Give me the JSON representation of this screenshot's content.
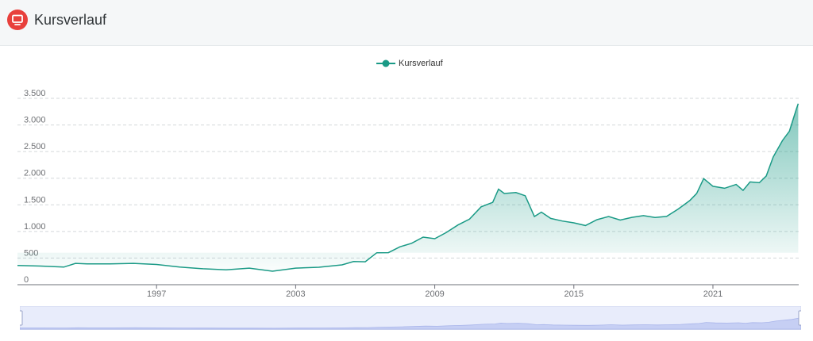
{
  "header": {
    "title": "Kursverlauf",
    "icon": "monitor-icon",
    "icon_color": "#e8403c"
  },
  "chart_data": {
    "type": "area",
    "title": "",
    "xlabel": "",
    "ylabel": "",
    "legend": {
      "entries": [
        "Kursverlauf"
      ],
      "placement": "top-center"
    },
    "grid": true,
    "xlim": [
      1991,
      2024.7
    ],
    "ylim": [
      0,
      3500
    ],
    "yticks": [
      0,
      500,
      1000,
      1500,
      2000,
      2500,
      3000,
      3500
    ],
    "ytick_labels": [
      "0",
      "500",
      "1.000",
      "1.500",
      "2.000",
      "2.500",
      "3.000",
      "3.500"
    ],
    "xticks": [
      1997,
      2003,
      2009,
      2015,
      2021
    ],
    "xtick_labels": [
      "1997",
      "2003",
      "2009",
      "2015",
      "2021"
    ],
    "series": [
      {
        "name": "Kursverlauf",
        "color": "#1a9a86",
        "x": [
          1991.0,
          1992.0,
          1993.0,
          1993.5,
          1994.0,
          1995.0,
          1996.0,
          1997.0,
          1998.0,
          1999.0,
          2000.0,
          2001.0,
          2002.0,
          2003.0,
          2004.0,
          2005.0,
          2005.5,
          2006.0,
          2006.5,
          2007.0,
          2007.5,
          2008.0,
          2008.5,
          2009.0,
          2009.5,
          2010.0,
          2010.5,
          2011.0,
          2011.5,
          2011.75,
          2012.0,
          2012.5,
          2012.9,
          2013.3,
          2013.6,
          2014.0,
          2014.5,
          2015.0,
          2015.5,
          2016.0,
          2016.5,
          2017.0,
          2017.5,
          2018.0,
          2018.5,
          2019.0,
          2019.5,
          2020.0,
          2020.3,
          2020.6,
          2021.0,
          2021.5,
          2022.0,
          2022.3,
          2022.6,
          2023.0,
          2023.3,
          2023.6,
          2024.0,
          2024.3,
          2024.6,
          2024.68
        ],
        "y": [
          360,
          350,
          330,
          400,
          390,
          390,
          400,
          380,
          330,
          300,
          280,
          290,
          270,
          300,
          330,
          380,
          420,
          450,
          580,
          620,
          700,
          780,
          900,
          850,
          1000,
          1100,
          1250,
          1450,
          1550,
          1800,
          1700,
          1750,
          1650,
          1300,
          1350,
          1250,
          1200,
          1150,
          1130,
          1200,
          1300,
          1200,
          1270,
          1300,
          1250,
          1300,
          1400,
          1600,
          1700,
          2000,
          1850,
          1800,
          1900,
          1750,
          1950,
          1900,
          2050,
          2400,
          2700,
          2900,
          3300,
          3400
        ]
      }
    ]
  }
}
